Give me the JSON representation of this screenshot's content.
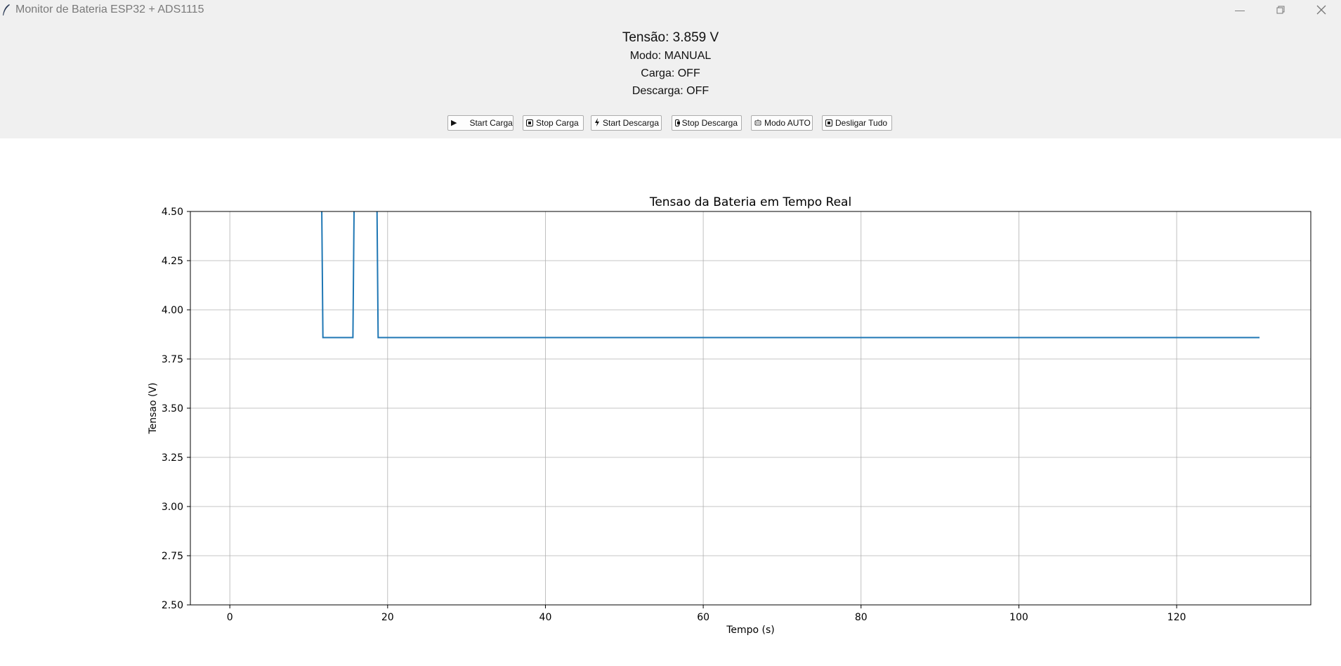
{
  "window": {
    "title": "Monitor de Bateria ESP32 + ADS1115",
    "controls": [
      "minimize-icon",
      "restore-icon",
      "close-icon"
    ]
  },
  "status": {
    "voltage": "Tensão: 3.859 V",
    "mode": "Modo: MANUAL",
    "charge": "Carga: OFF",
    "discharge": "Descarga: OFF"
  },
  "buttons": {
    "start_charge": "Start Carga",
    "stop_charge": "Stop Carga",
    "start_discharge": "Start Descarga",
    "stop_discharge": "Stop Descarga",
    "auto_mode": "Modo AUTO",
    "turn_off_all": "Desligar Tudo"
  },
  "chart_data": {
    "type": "line",
    "title": "Tensao da Bateria em Tempo Real",
    "xlabel": "Tempo (s)",
    "ylabel": "Tensao (V)",
    "xlim": [
      -5,
      137
    ],
    "ylim": [
      2.5,
      4.5
    ],
    "xticks": [
      0,
      20,
      40,
      60,
      80,
      100,
      120
    ],
    "yticks": [
      2.5,
      2.75,
      3.0,
      3.25,
      3.5,
      3.75,
      4.0,
      4.25,
      4.5
    ],
    "xtick_labels": [
      "0",
      "20",
      "40",
      "60",
      "80",
      "100",
      "120"
    ],
    "ytick_labels": [
      "2.50",
      "2.75",
      "3.00",
      "3.25",
      "3.50",
      "3.75",
      "4.00",
      "4.25",
      "4.50"
    ],
    "grid": true,
    "series": [
      {
        "color": "#1f77b4",
        "x": [
          11.5,
          11.8,
          15.6,
          15.9,
          18.5,
          18.8,
          130.5
        ],
        "y": [
          5.2,
          3.859,
          3.859,
          5.2,
          5.2,
          3.859,
          3.859
        ]
      }
    ]
  }
}
